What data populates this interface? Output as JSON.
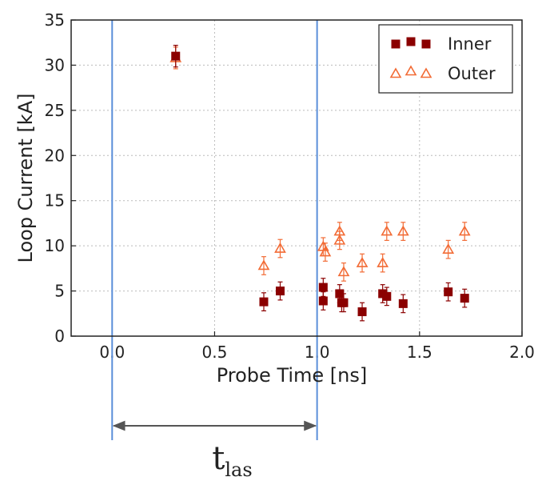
{
  "chart_data": {
    "type": "scatter",
    "xlabel": "Probe Time [ns]",
    "ylabel": "Loop Current [kA]",
    "xlim": [
      -0.2,
      2.0
    ],
    "ylim": [
      0,
      35
    ],
    "xticks": [
      "0.0",
      "0.5",
      "1.0",
      "1.5",
      "2.0"
    ],
    "yticks": [
      "0",
      "5",
      "10",
      "15",
      "20",
      "25",
      "30",
      "35"
    ],
    "grid": "dotted",
    "legend_position": "top-right",
    "vertical_lines_x": [
      0.0,
      1.0
    ],
    "annotation": {
      "text": "t",
      "subscript": "las",
      "from_x": 0.0,
      "to_x": 1.0
    },
    "series": [
      {
        "name": "Inner",
        "marker": "filled-square",
        "color": "#8b0000",
        "points": [
          {
            "x": 0.31,
            "y": 31.0,
            "err": 1.2
          },
          {
            "x": 0.74,
            "y": 3.8,
            "err": 1.0
          },
          {
            "x": 0.82,
            "y": 5.0,
            "err": 1.0
          },
          {
            "x": 1.03,
            "y": 5.4,
            "err": 1.0
          },
          {
            "x": 1.03,
            "y": 3.9,
            "err": 1.0
          },
          {
            "x": 1.11,
            "y": 4.7,
            "err": 1.0
          },
          {
            "x": 1.12,
            "y": 3.7,
            "err": 1.0
          },
          {
            "x": 1.13,
            "y": 3.7,
            "err": 1.0
          },
          {
            "x": 1.22,
            "y": 2.7,
            "err": 1.0
          },
          {
            "x": 1.32,
            "y": 4.7,
            "err": 1.0
          },
          {
            "x": 1.34,
            "y": 4.4,
            "err": 1.0
          },
          {
            "x": 1.42,
            "y": 3.6,
            "err": 1.0
          },
          {
            "x": 1.64,
            "y": 4.9,
            "err": 1.0
          },
          {
            "x": 1.72,
            "y": 4.2,
            "err": 1.0
          }
        ]
      },
      {
        "name": "Outer",
        "marker": "open-triangle",
        "color": "#f26b35",
        "points": [
          {
            "x": 0.31,
            "y": 30.8,
            "err": 1.2
          },
          {
            "x": 0.74,
            "y": 7.8,
            "err": 1.0
          },
          {
            "x": 0.82,
            "y": 9.7,
            "err": 1.0
          },
          {
            "x": 1.03,
            "y": 9.9,
            "err": 1.0
          },
          {
            "x": 1.04,
            "y": 9.3,
            "err": 1.0
          },
          {
            "x": 1.11,
            "y": 11.6,
            "err": 1.0
          },
          {
            "x": 1.11,
            "y": 10.6,
            "err": 1.0
          },
          {
            "x": 1.13,
            "y": 7.1,
            "err": 1.0
          },
          {
            "x": 1.22,
            "y": 8.1,
            "err": 1.0
          },
          {
            "x": 1.32,
            "y": 8.1,
            "err": 1.0
          },
          {
            "x": 1.34,
            "y": 11.6,
            "err": 1.0
          },
          {
            "x": 1.42,
            "y": 11.6,
            "err": 1.0
          },
          {
            "x": 1.64,
            "y": 9.6,
            "err": 1.0
          },
          {
            "x": 1.72,
            "y": 11.6,
            "err": 1.0
          }
        ]
      }
    ]
  }
}
